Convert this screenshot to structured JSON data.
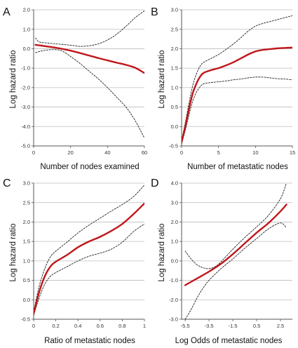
{
  "colors": {
    "fit": "#c0161b",
    "ci": "#222222",
    "grid": "#bdbdbd",
    "axis": "#555555"
  },
  "chart_data": [
    {
      "panel": "A",
      "type": "line",
      "xlabel": "Number of nodes examined",
      "ylabel": "Log hazard ratio",
      "xlim": [
        0,
        60
      ],
      "ylim": [
        -5.0,
        2.0
      ],
      "xticks": [
        0,
        20,
        40,
        60
      ],
      "xtick_labels": [
        "0",
        "20",
        "40",
        "60"
      ],
      "yticks": [
        -5,
        -4,
        -3,
        -2,
        -1,
        0,
        1,
        2
      ],
      "ytick_labels": [
        "-5.0",
        "-4.0",
        "-3.0",
        "-2.0",
        "-1.0",
        "0.0",
        "1.0",
        "2.0"
      ],
      "grid": "horizontal",
      "series": [
        {
          "role": "estimate",
          "x": [
            1,
            5,
            10,
            15,
            20,
            25,
            30,
            35,
            40,
            45,
            50,
            55,
            60
          ],
          "y": [
            0.2,
            0.15,
            0.08,
            0.0,
            -0.1,
            -0.22,
            -0.35,
            -0.48,
            -0.6,
            -0.72,
            -0.83,
            -0.98,
            -1.25
          ]
        },
        {
          "role": "upper",
          "x": [
            1,
            3,
            7,
            12,
            20,
            25,
            30,
            35,
            40,
            45,
            50,
            55,
            60
          ],
          "y": [
            0.55,
            0.35,
            0.3,
            0.25,
            0.18,
            0.12,
            0.15,
            0.25,
            0.45,
            0.75,
            1.15,
            1.6,
            1.95
          ]
        },
        {
          "role": "lower",
          "x": [
            1,
            5,
            10,
            15,
            20,
            25,
            30,
            35,
            40,
            45,
            50,
            55,
            60
          ],
          "y": [
            -0.2,
            -0.1,
            -0.05,
            -0.1,
            -0.4,
            -0.75,
            -1.15,
            -1.55,
            -2.0,
            -2.5,
            -3.0,
            -3.7,
            -4.6
          ]
        }
      ]
    },
    {
      "panel": "B",
      "type": "line",
      "xlabel": "Number of metastatic nodes",
      "ylabel": "Log hazard ratio",
      "xlim": [
        0,
        15
      ],
      "ylim": [
        -0.5,
        3.0
      ],
      "xticks": [
        0,
        5,
        10,
        15
      ],
      "xtick_labels": [
        "0",
        "5",
        "10",
        "15"
      ],
      "yticks": [
        -0.5,
        0,
        0.5,
        1,
        1.5,
        2,
        2.5,
        3
      ],
      "ytick_labels": [
        "-0.5",
        "0.0",
        "0.5",
        "1.0",
        "1.5",
        "2.0",
        "2.5",
        "3.0"
      ],
      "grid": "horizontal",
      "series": [
        {
          "role": "estimate",
          "x": [
            0,
            0.5,
            1,
            1.5,
            2,
            2.5,
            3,
            4,
            5,
            6,
            7,
            8,
            9,
            10,
            11,
            12,
            13,
            14,
            15
          ],
          "y": [
            -0.4,
            0.0,
            0.45,
            0.85,
            1.1,
            1.28,
            1.38,
            1.45,
            1.5,
            1.57,
            1.65,
            1.75,
            1.85,
            1.93,
            1.97,
            1.99,
            2.01,
            2.02,
            2.03
          ]
        },
        {
          "role": "upper",
          "x": [
            0,
            0.5,
            1,
            1.5,
            2,
            2.5,
            3,
            4,
            5,
            6,
            7,
            8,
            9,
            10,
            11,
            12,
            13,
            14,
            15
          ],
          "y": [
            -0.35,
            0.1,
            0.6,
            1.05,
            1.35,
            1.55,
            1.65,
            1.75,
            1.85,
            1.98,
            2.12,
            2.28,
            2.45,
            2.58,
            2.65,
            2.7,
            2.75,
            2.8,
            2.85
          ]
        },
        {
          "role": "lower",
          "x": [
            0,
            0.5,
            1,
            1.5,
            2,
            2.5,
            3,
            4,
            5,
            6,
            7,
            8,
            9,
            10,
            11,
            12,
            13,
            14,
            15
          ],
          "y": [
            -0.45,
            -0.1,
            0.3,
            0.65,
            0.88,
            1.02,
            1.1,
            1.13,
            1.15,
            1.17,
            1.2,
            1.22,
            1.25,
            1.27,
            1.27,
            1.25,
            1.23,
            1.22,
            1.2
          ]
        }
      ]
    },
    {
      "panel": "C",
      "type": "line",
      "xlabel": "Ratio of metastatic nodes",
      "ylabel": "Log hazard ratio",
      "xlim": [
        0,
        1
      ],
      "ylim": [
        -0.5,
        3.0
      ],
      "xticks": [
        0,
        0.2,
        0.4,
        0.6,
        0.8,
        1
      ],
      "xtick_labels": [
        "0",
        "0.2",
        "0.4",
        "0.6",
        "0.8",
        "1"
      ],
      "yticks": [
        -0.5,
        0,
        0.5,
        1,
        1.5,
        2,
        2.5,
        3
      ],
      "ytick_labels": [
        "-0.5",
        "0.0",
        "0.5",
        "1.0",
        "1.5",
        "2.0",
        "2.5",
        "3.0"
      ],
      "grid": "horizontal",
      "series": [
        {
          "role": "estimate",
          "x": [
            0,
            0.05,
            0.1,
            0.15,
            0.2,
            0.3,
            0.4,
            0.5,
            0.6,
            0.7,
            0.8,
            0.9,
            1.0
          ],
          "y": [
            -0.35,
            0.2,
            0.6,
            0.85,
            0.98,
            1.15,
            1.35,
            1.5,
            1.62,
            1.77,
            1.95,
            2.2,
            2.48
          ]
        },
        {
          "role": "upper",
          "x": [
            0,
            0.05,
            0.1,
            0.15,
            0.2,
            0.3,
            0.4,
            0.5,
            0.6,
            0.7,
            0.8,
            0.9,
            1.0
          ],
          "y": [
            -0.3,
            0.35,
            0.8,
            1.1,
            1.25,
            1.48,
            1.72,
            1.92,
            2.1,
            2.28,
            2.45,
            2.65,
            2.95
          ]
        },
        {
          "role": "lower",
          "x": [
            0,
            0.05,
            0.1,
            0.15,
            0.2,
            0.3,
            0.4,
            0.5,
            0.6,
            0.7,
            0.8,
            0.9,
            1.0
          ],
          "y": [
            -0.4,
            0.05,
            0.4,
            0.6,
            0.7,
            0.85,
            1.0,
            1.12,
            1.2,
            1.3,
            1.48,
            1.75,
            1.95
          ]
        }
      ]
    },
    {
      "panel": "D",
      "type": "line",
      "xlabel": "Log Odds of metastatic nodes",
      "ylabel": "Log hazard ratio",
      "xlim": [
        -5.8,
        3.5
      ],
      "ylim": [
        -3.0,
        4.0
      ],
      "xticks": [
        -5.5,
        -3.5,
        -1.5,
        0.5,
        2.5
      ],
      "xtick_labels": [
        "-5.5",
        "-3.5",
        "-1.5",
        "0.5",
        "2.5"
      ],
      "yticks": [
        -3,
        -2,
        -1,
        0,
        1,
        2,
        3,
        4
      ],
      "ytick_labels": [
        "-3.0",
        "-2.0",
        "-1.0",
        "0.0",
        "1.0",
        "2.0",
        "3.0",
        "4.0"
      ],
      "grid": "horizontal",
      "series": [
        {
          "role": "estimate",
          "x": [
            -5.5,
            -4.5,
            -3.5,
            -2.5,
            -1.5,
            -0.5,
            0.5,
            1.5,
            2.5,
            3.0
          ],
          "y": [
            -1.25,
            -0.9,
            -0.55,
            -0.15,
            0.35,
            0.9,
            1.45,
            1.95,
            2.55,
            2.9
          ]
        },
        {
          "role": "upper",
          "x": [
            -5.5,
            -5.0,
            -4.5,
            -4.0,
            -3.5,
            -3.0,
            -2.5,
            -1.5,
            -0.5,
            0.5,
            1.5,
            2.5,
            3.0
          ],
          "y": [
            0.5,
            0.1,
            -0.2,
            -0.35,
            -0.4,
            -0.3,
            -0.05,
            0.6,
            1.2,
            1.75,
            2.35,
            3.2,
            4.0
          ]
        },
        {
          "role": "lower",
          "x": [
            -5.5,
            -5.0,
            -4.5,
            -4.0,
            -3.5,
            -2.5,
            -1.5,
            -0.5,
            0.5,
            1.5,
            2.5,
            3.0
          ],
          "y": [
            -3.0,
            -2.5,
            -1.9,
            -1.4,
            -1.0,
            -0.4,
            0.1,
            0.65,
            1.15,
            1.65,
            1.95,
            1.7
          ]
        }
      ]
    }
  ]
}
